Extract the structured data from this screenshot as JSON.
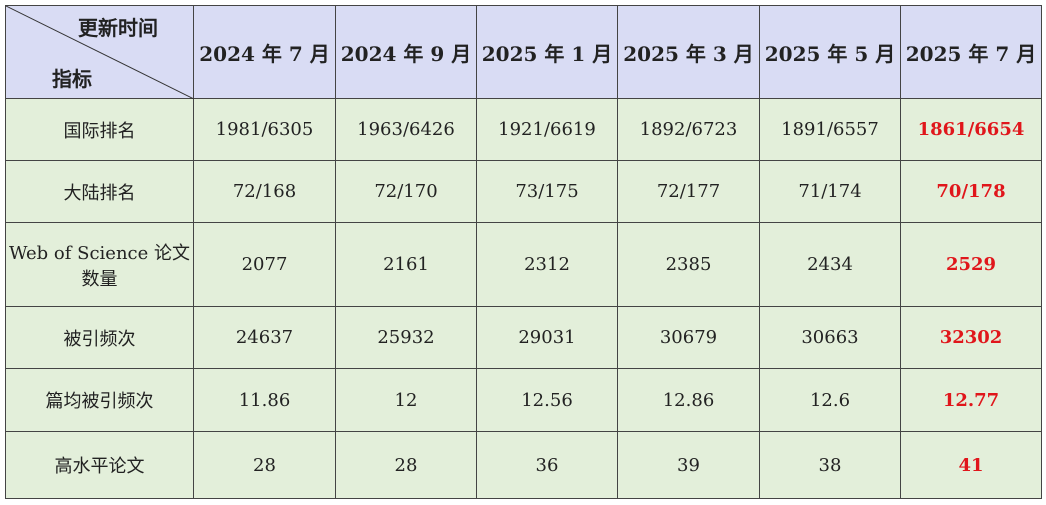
{
  "table": {
    "corner_top": "更新时间",
    "corner_bottom": "指标",
    "columns": [
      "2024 年 7 月",
      "2024 年 9 月",
      "2025 年 1 月",
      "2025 年 3 月",
      "2025 年 5 月",
      "2025 年 7 月"
    ],
    "rows": [
      {
        "label": "国际排名",
        "values": [
          "1981/6305",
          "1963/6426",
          "1921/6619",
          "1892/6723",
          "1891/6557",
          "1861/6654"
        ]
      },
      {
        "label": "大陆排名",
        "values": [
          "72/168",
          "72/170",
          "73/175",
          "72/177",
          "71/174",
          "70/178"
        ]
      },
      {
        "label": "Web of Science 论文数量",
        "values": [
          "2077",
          "2161",
          "2312",
          "2385",
          "2434",
          "2529"
        ]
      },
      {
        "label": "被引频次",
        "values": [
          "24637",
          "25932",
          "29031",
          "30679",
          "30663",
          "32302"
        ]
      },
      {
        "label": "篇均被引频次",
        "values": [
          "11.86",
          "12",
          "12.56",
          "12.86",
          "12.6",
          "12.77"
        ]
      },
      {
        "label": "高水平论文",
        "values": [
          "28",
          "28",
          "36",
          "39",
          "38",
          "41"
        ]
      }
    ]
  }
}
